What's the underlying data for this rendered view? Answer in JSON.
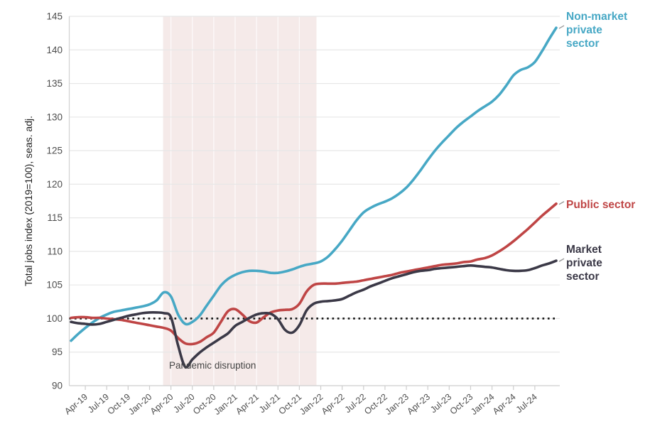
{
  "figure": {
    "y_axis_title": "Total jobs index (2019=100), seas. adj.",
    "annotation": {
      "lines": [
        "Pandemic",
        "disruption"
      ]
    },
    "colors": {
      "background": "#ffffff",
      "band": "#f5eae9",
      "band_gridline": "rgba(255,255,255,0.75)",
      "grid": "#e7e7e7",
      "axis": "#d2d2d2",
      "tick_mark": "#cdcdcd",
      "tick_text": "#4d4d4d",
      "baseline": "#141414",
      "annotation_text": "#454545",
      "connector": "#9a9a9a"
    }
  },
  "chart_data": {
    "type": "line",
    "frequency": "monthly",
    "x_start": "Feb-2019",
    "x_end": "Oct-2024",
    "x_tick_labels": [
      "Apr-19",
      "Jul-19",
      "Oct-19",
      "Jan-20",
      "Apr-20",
      "Jul-20",
      "Oct-20",
      "Jan-21",
      "Apr-21",
      "Jul-21",
      "Oct-21",
      "Jan-22",
      "Apr-22",
      "Jul-22",
      "Oct-22",
      "Jan-23",
      "Apr-23",
      "Jul-23",
      "Oct-23",
      "Jan-24",
      "Apr-24",
      "Jul-24"
    ],
    "x_tick_month_indices": [
      2,
      5,
      8,
      11,
      14,
      17,
      20,
      23,
      26,
      29,
      32,
      35,
      38,
      41,
      44,
      47,
      50,
      53,
      56,
      59,
      62,
      65
    ],
    "ylim": [
      90,
      145
    ],
    "y_tick_values": [
      90,
      95,
      100,
      105,
      110,
      115,
      120,
      125,
      130,
      135,
      140,
      145
    ],
    "baseline_value": 100,
    "grid": true,
    "legend_position": "right-of-lines",
    "shaded_region": {
      "label": "Pandemic disruption",
      "from": "Mar-2020",
      "to": "Dec-2021",
      "from_month_index": 12.9,
      "to_month_index": 34.4
    },
    "series": [
      {
        "name": "Non-market private sector",
        "label_lines": [
          "Non-market",
          "private",
          "sector"
        ],
        "color": "#47a8c5",
        "values": [
          96.7,
          97.7,
          98.6,
          99.4,
          100.1,
          100.6,
          101.0,
          101.2,
          101.4,
          101.6,
          101.8,
          102.1,
          102.7,
          103.9,
          103.3,
          100.6,
          99.2,
          99.5,
          100.4,
          101.9,
          103.4,
          104.9,
          105.9,
          106.5,
          106.9,
          107.1,
          107.1,
          107.0,
          106.8,
          106.8,
          107.0,
          107.3,
          107.7,
          108.0,
          108.2,
          108.5,
          109.2,
          110.3,
          111.6,
          113.1,
          114.6,
          115.8,
          116.5,
          117.0,
          117.4,
          117.9,
          118.6,
          119.5,
          120.7,
          122.1,
          123.6,
          125.0,
          126.2,
          127.3,
          128.4,
          129.3,
          130.1,
          130.9,
          131.6,
          132.3,
          133.3,
          134.7,
          136.2,
          137.0,
          137.4,
          138.2,
          139.8,
          141.6,
          143.3
        ]
      },
      {
        "name": "Public sector",
        "label_lines": [
          "Public sector"
        ],
        "color": "#bf4545",
        "values": [
          100.1,
          100.2,
          100.2,
          100.1,
          100.1,
          100.0,
          99.9,
          99.8,
          99.6,
          99.4,
          99.2,
          99.0,
          98.8,
          98.6,
          98.2,
          97.1,
          96.3,
          96.2,
          96.5,
          97.2,
          97.9,
          99.5,
          101.1,
          101.4,
          100.6,
          99.6,
          99.4,
          100.2,
          100.9,
          101.2,
          101.3,
          101.4,
          102.2,
          104.0,
          105.0,
          105.2,
          105.2,
          105.2,
          105.3,
          105.4,
          105.5,
          105.7,
          105.9,
          106.1,
          106.3,
          106.5,
          106.8,
          107.0,
          107.2,
          107.4,
          107.6,
          107.8,
          108.0,
          108.1,
          108.2,
          108.4,
          108.5,
          108.8,
          109.0,
          109.4,
          110.0,
          110.7,
          111.5,
          112.4,
          113.3,
          114.3,
          115.3,
          116.2,
          117.1
        ]
      },
      {
        "name": "Market private sector",
        "label_lines": [
          "Market",
          "private",
          "sector"
        ],
        "color": "#3b3947",
        "values": [
          99.5,
          99.3,
          99.2,
          99.1,
          99.2,
          99.5,
          99.8,
          100.1,
          100.4,
          100.6,
          100.8,
          100.9,
          100.9,
          100.8,
          100.2,
          96.0,
          92.8,
          93.9,
          94.9,
          95.7,
          96.4,
          97.1,
          97.8,
          98.9,
          99.5,
          100.1,
          100.6,
          100.8,
          100.7,
          99.9,
          98.3,
          97.9,
          99.0,
          101.2,
          102.2,
          102.5,
          102.6,
          102.7,
          102.9,
          103.4,
          103.9,
          104.3,
          104.8,
          105.2,
          105.6,
          106.0,
          106.3,
          106.6,
          106.9,
          107.1,
          107.2,
          107.4,
          107.5,
          107.6,
          107.7,
          107.8,
          107.9,
          107.8,
          107.7,
          107.6,
          107.4,
          107.2,
          107.1,
          107.1,
          107.2,
          107.5,
          107.9,
          108.2,
          108.6
        ]
      }
    ]
  }
}
